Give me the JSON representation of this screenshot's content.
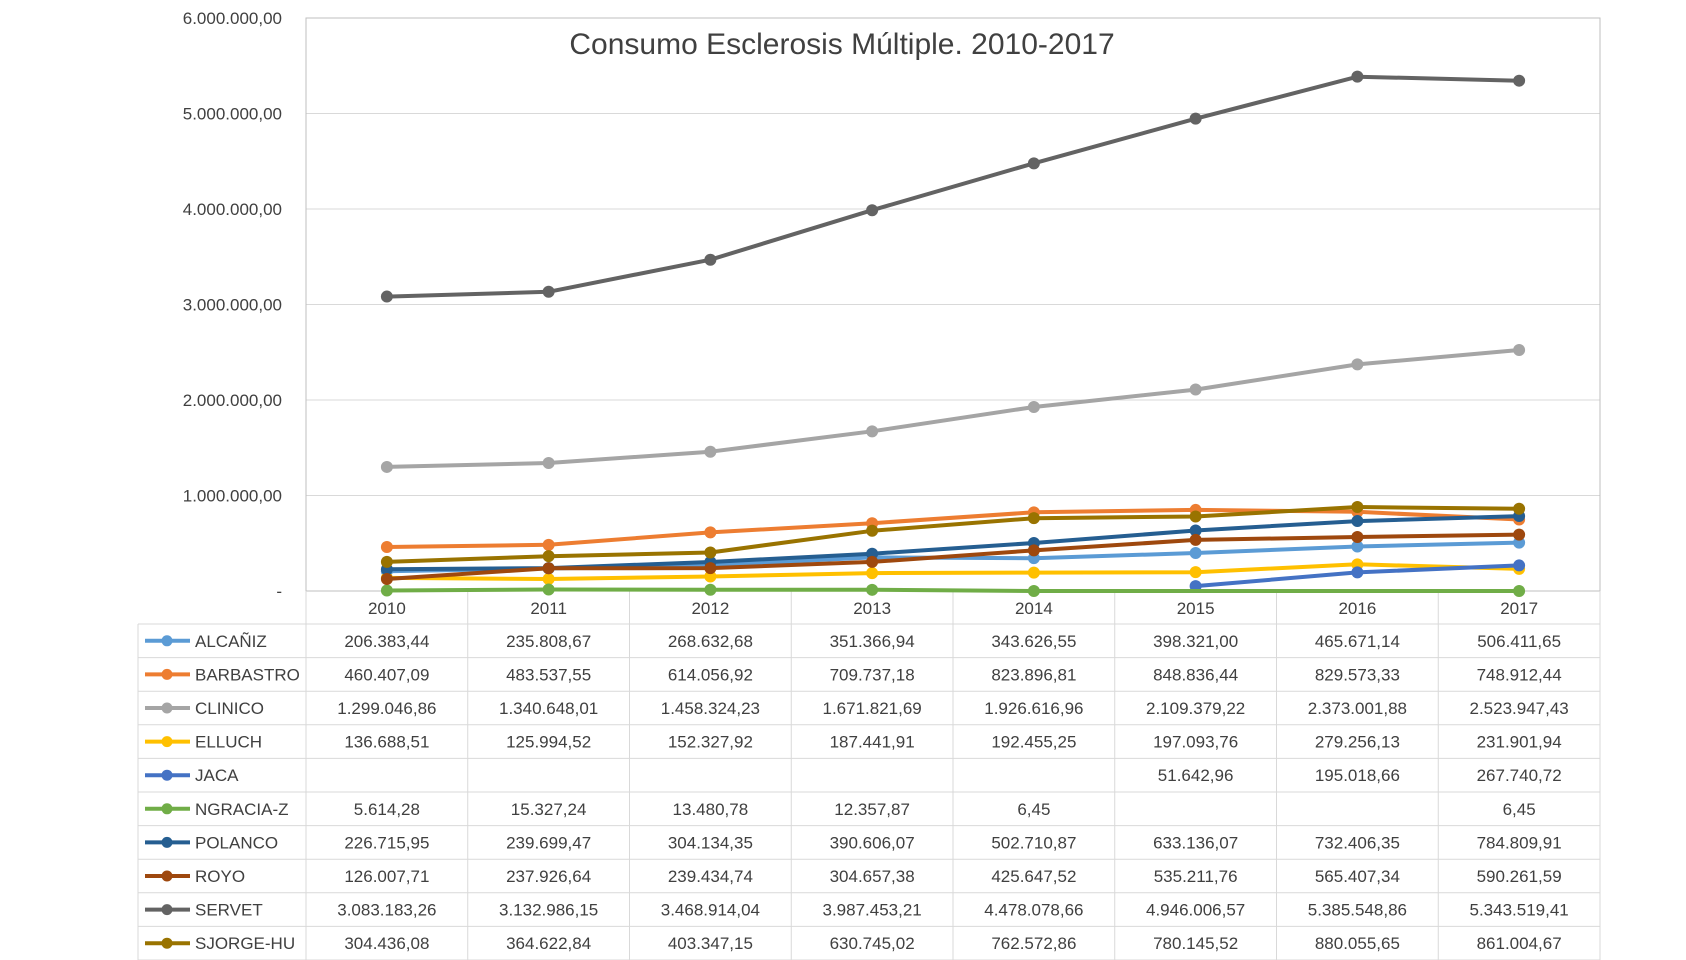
{
  "chart_data": {
    "type": "line",
    "title": "Consumo Esclerosis  Múltiple. 2010-2017",
    "xlabel": "",
    "ylabel": "",
    "ylim": [
      0,
      6000000
    ],
    "y_ticks": [
      {
        "value": 0,
        "label": "-"
      },
      {
        "value": 1000000,
        "label": "1.000.000,00"
      },
      {
        "value": 2000000,
        "label": "2.000.000,00"
      },
      {
        "value": 3000000,
        "label": "3.000.000,00"
      },
      {
        "value": 4000000,
        "label": "4.000.000,00"
      },
      {
        "value": 5000000,
        "label": "5.000.000,00"
      },
      {
        "value": 6000000,
        "label": "6.000.000,00"
      }
    ],
    "grid": true,
    "legend": "data-table-left",
    "categories": [
      "2010",
      "2011",
      "2012",
      "2013",
      "2014",
      "2015",
      "2016",
      "2017"
    ],
    "series": [
      {
        "name": "ALCAÑIZ",
        "color": "#5b9bd5",
        "values": [
          206383.44,
          235808.67,
          268632.68,
          351366.94,
          343626.55,
          398321.0,
          465671.14,
          506411.65
        ],
        "labels": [
          "206.383,44",
          "235.808,67",
          "268.632,68",
          "351.366,94",
          "343.626,55",
          "398.321,00",
          "465.671,14",
          "506.411,65"
        ]
      },
      {
        "name": "BARBASTRO",
        "color": "#ed7d31",
        "values": [
          460407.09,
          483537.55,
          614056.92,
          709737.18,
          823896.81,
          848836.44,
          829573.33,
          748912.44
        ],
        "labels": [
          "460.407,09",
          "483.537,55",
          "614.056,92",
          "709.737,18",
          "823.896,81",
          "848.836,44",
          "829.573,33",
          "748.912,44"
        ]
      },
      {
        "name": "CLINICO",
        "color": "#a5a5a5",
        "values": [
          1299046.86,
          1340648.01,
          1458324.23,
          1671821.69,
          1926616.96,
          2109379.22,
          2373001.88,
          2523947.43
        ],
        "labels": [
          "1.299.046,86",
          "1.340.648,01",
          "1.458.324,23",
          "1.671.821,69",
          "1.926.616,96",
          "2.109.379,22",
          "2.373.001,88",
          "2.523.947,43"
        ]
      },
      {
        "name": "ELLUCH",
        "color": "#ffc000",
        "values": [
          136688.51,
          125994.52,
          152327.92,
          187441.91,
          192455.25,
          197093.76,
          279256.13,
          231901.94
        ],
        "labels": [
          "136.688,51",
          "125.994,52",
          "152.327,92",
          "187.441,91",
          "192.455,25",
          "197.093,76",
          "279.256,13",
          "231.901,94"
        ]
      },
      {
        "name": "JACA",
        "color": "#4472c4",
        "values": [
          null,
          null,
          null,
          null,
          null,
          51642.96,
          195018.66,
          267740.72
        ],
        "labels": [
          "",
          "",
          "",
          "",
          "",
          "51.642,96",
          "195.018,66",
          "267.740,72"
        ]
      },
      {
        "name": "NGRACIA-Z",
        "color": "#70ad47",
        "values": [
          5614.28,
          15327.24,
          13480.78,
          12357.87,
          6.45,
          null,
          null,
          6.45
        ],
        "labels": [
          "5.614,28",
          "15.327,24",
          "13.480,78",
          "12.357,87",
          "6,45",
          "",
          "",
          "6,45"
        ]
      },
      {
        "name": "POLANCO",
        "color": "#255e91",
        "values": [
          226715.95,
          239699.47,
          304134.35,
          390606.07,
          502710.87,
          633136.07,
          732406.35,
          784809.91
        ],
        "labels": [
          "226.715,95",
          "239.699,47",
          "304.134,35",
          "390.606,07",
          "502.710,87",
          "633.136,07",
          "732.406,35",
          "784.809,91"
        ]
      },
      {
        "name": "ROYO",
        "color": "#9e480e",
        "values": [
          126007.71,
          237926.64,
          239434.74,
          304657.38,
          425647.52,
          535211.76,
          565407.34,
          590261.59
        ],
        "labels": [
          "126.007,71",
          "237.926,64",
          "239.434,74",
          "304.657,38",
          "425.647,52",
          "535.211,76",
          "565.407,34",
          "590.261,59"
        ]
      },
      {
        "name": "SERVET",
        "color": "#636363",
        "values": [
          3083183.26,
          3132986.15,
          3468914.04,
          3987453.21,
          4478078.66,
          4946006.57,
          5385548.86,
          5343519.41
        ],
        "labels": [
          "3.083.183,26",
          "3.132.986,15",
          "3.468.914,04",
          "3.987.453,21",
          "4.478.078,66",
          "4.946.006,57",
          "5.385.548,86",
          "5.343.519,41"
        ]
      },
      {
        "name": "SJORGE-HU",
        "color": "#997300",
        "values": [
          304436.08,
          364622.84,
          403347.15,
          630745.02,
          762572.86,
          780145.52,
          880055.65,
          861004.67
        ],
        "labels": [
          "304.436,08",
          "364.622,84",
          "403.347,15",
          "630.745,02",
          "762.572,86",
          "780.145,52",
          "880.055,65",
          "861.004,67"
        ]
      }
    ]
  }
}
